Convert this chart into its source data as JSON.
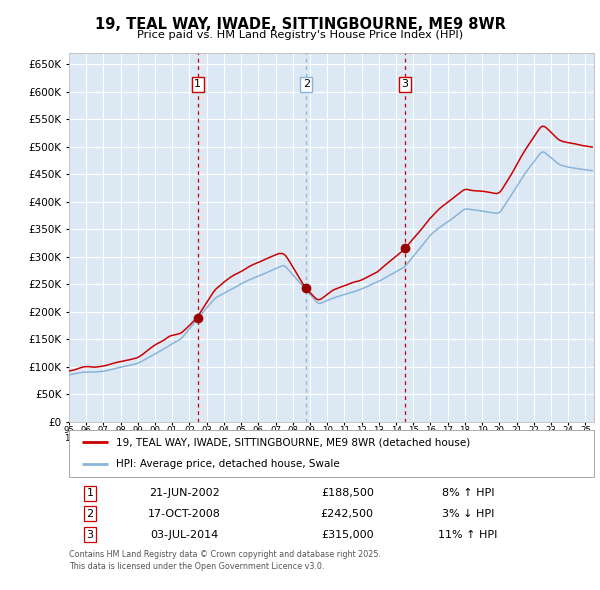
{
  "title": "19, TEAL WAY, IWADE, SITTINGBOURNE, ME9 8WR",
  "subtitle": "Price paid vs. HM Land Registry's House Price Index (HPI)",
  "legend_line1": "19, TEAL WAY, IWADE, SITTINGBOURNE, ME9 8WR (detached house)",
  "legend_line2": "HPI: Average price, detached house, Swale",
  "sale1_date": "21-JUN-2002",
  "sale1_price": 188500,
  "sale1_pct": "8% ↑ HPI",
  "sale2_date": "17-OCT-2008",
  "sale2_price": 242500,
  "sale2_pct": "3% ↓ HPI",
  "sale3_date": "03-JUL-2014",
  "sale3_price": 315000,
  "sale3_pct": "11% ↑ HPI",
  "copyright": "Contains HM Land Registry data © Crown copyright and database right 2025.\nThis data is licensed under the Open Government Licence v3.0.",
  "ylim": [
    0,
    670000
  ],
  "yticks": [
    0,
    50000,
    100000,
    150000,
    200000,
    250000,
    300000,
    350000,
    400000,
    450000,
    500000,
    550000,
    600000,
    650000
  ],
  "background_color": "#dce9f5",
  "hpi_color": "#8ab4d8",
  "price_color": "#cc0000",
  "vline1_color": "#cc0000",
  "vline2_color": "#8ab4d8",
  "vline3_color": "#cc0000",
  "dot_color": "#990000",
  "grid_color": "#ffffff",
  "sale1_year": 2002.47,
  "sale2_year": 2008.79,
  "sale3_year": 2014.5,
  "start_year": 1995,
  "end_year": 2025
}
